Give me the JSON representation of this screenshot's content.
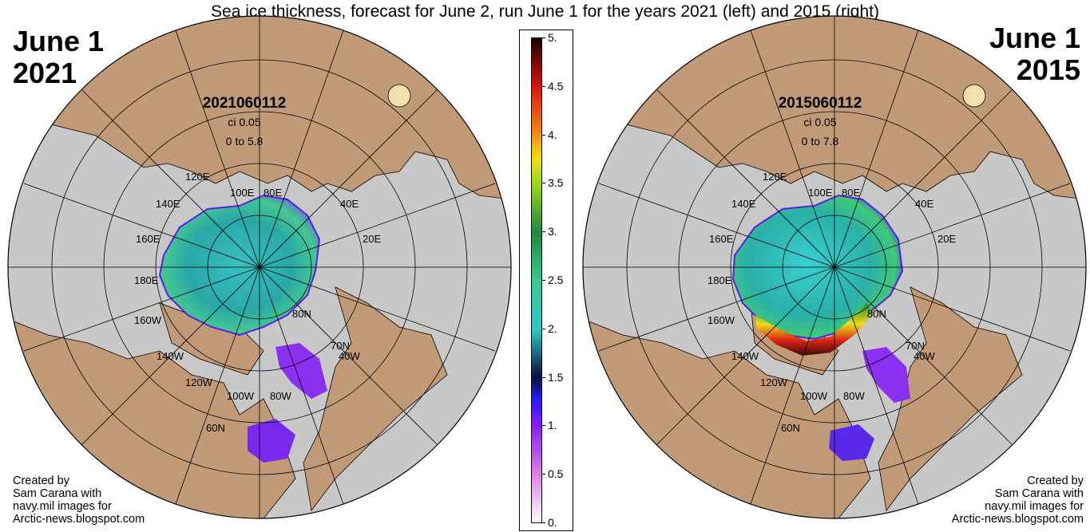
{
  "title": "Sea ice thickness, forecast for June 2, run June 1 for the years 2021 (left) and 2015 (right)",
  "left_panel": {
    "date_line1": "June 1",
    "date_line2": "2021",
    "run_id": "2021060112",
    "contour_interval": "ci 0.05",
    "range": "0 to 5.8",
    "credit": [
      "Created by",
      "Sam Carana with",
      "navy.mil images for",
      "Arctic-news.blogspot.com"
    ],
    "ice_max_thickness_m": 5.8
  },
  "right_panel": {
    "date_line1": "June 1",
    "date_line2": "2015",
    "run_id": "2015060112",
    "contour_interval": "ci 0.05",
    "range": "0 to 7.8",
    "credit": [
      "Created by",
      "Sam Carana with",
      "navy.mil images for",
      "Arctic-news.blogspot.com"
    ],
    "ice_max_thickness_m": 7.8
  },
  "map_labels": {
    "lon": [
      "120E",
      "140E",
      "160E",
      "180E",
      "160W",
      "140W",
      "120W",
      "100W",
      "80W",
      "100E",
      "80E",
      "40E",
      "20E"
    ],
    "lat": [
      "80N",
      "70N",
      "60N"
    ],
    "lon_40w": "40W"
  },
  "colorbar": {
    "unit_hint": "sea ice thickness",
    "ticks": [
      "5.",
      "4.5",
      "4.",
      "3.5",
      "3.",
      "2.5",
      "2.",
      "1.5",
      "1.",
      "0.5",
      "0."
    ],
    "stops": [
      {
        "value": 0.0,
        "color": "#ffffff"
      },
      {
        "value": 0.5,
        "color": "#e07ee6"
      },
      {
        "value": 1.0,
        "color": "#8a1cf0"
      },
      {
        "value": 1.25,
        "color": "#2a1cff"
      },
      {
        "value": 1.5,
        "color": "#081040"
      },
      {
        "value": 1.75,
        "color": "#1a6a8a"
      },
      {
        "value": 2.0,
        "color": "#2ec8c8"
      },
      {
        "value": 2.5,
        "color": "#38c890"
      },
      {
        "value": 3.0,
        "color": "#1e8a3a"
      },
      {
        "value": 3.5,
        "color": "#9ad81a"
      },
      {
        "value": 3.75,
        "color": "#f0e010"
      },
      {
        "value": 4.0,
        "color": "#f09010"
      },
      {
        "value": 4.5,
        "color": "#e01010"
      },
      {
        "value": 5.0,
        "color": "#1a0000"
      }
    ]
  },
  "colors": {
    "land": "#c19a78",
    "ocean": "#c8c8c8",
    "grid": "#000000",
    "lake": "#f5deb0"
  }
}
